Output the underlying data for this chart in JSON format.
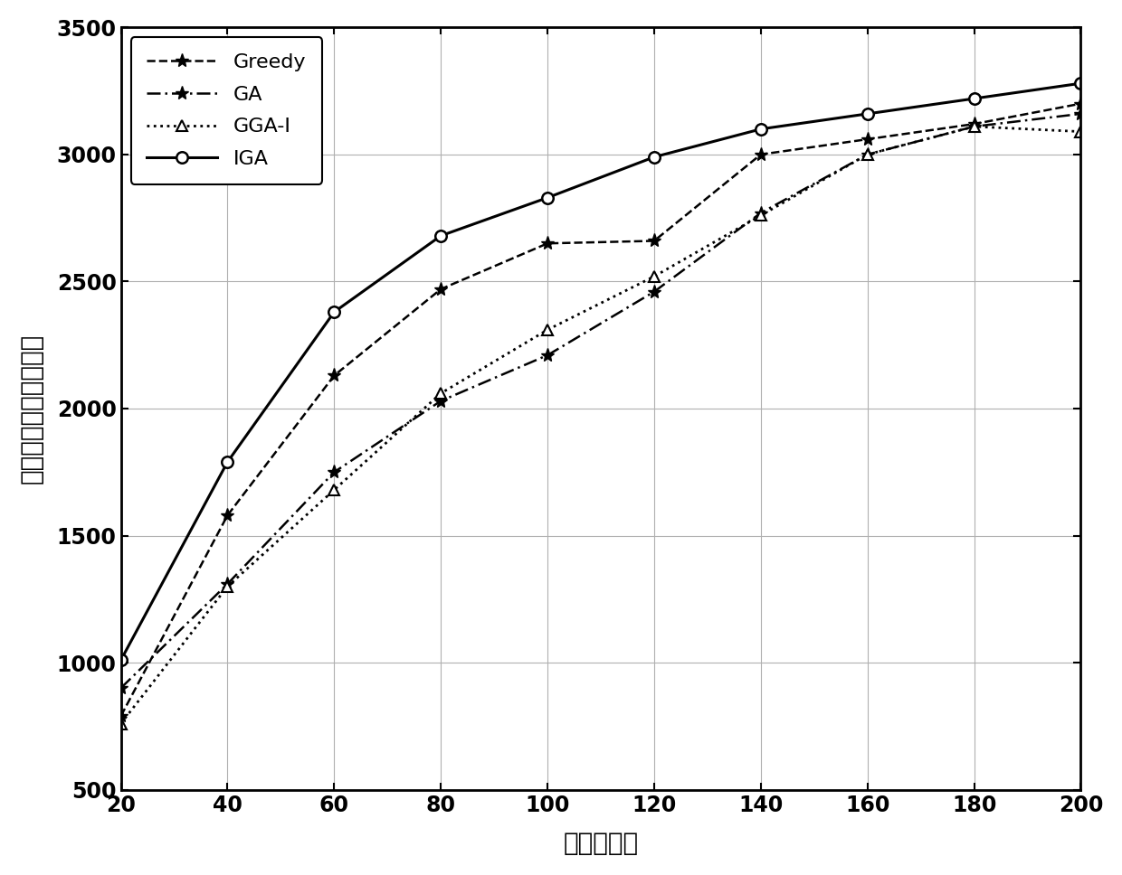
{
  "x": [
    20,
    40,
    60,
    80,
    100,
    120,
    140,
    160,
    180,
    200
  ],
  "greedy": [
    790,
    1580,
    2130,
    2470,
    2650,
    2660,
    3000,
    3060,
    3120,
    3200
  ],
  "ga": [
    900,
    1310,
    1750,
    2030,
    2210,
    2460,
    2770,
    3000,
    3110,
    3160
  ],
  "gga_i": [
    760,
    1300,
    1680,
    2060,
    2310,
    2520,
    2760,
    3000,
    3110,
    3090
  ],
  "iga": [
    1010,
    1790,
    2380,
    2680,
    2830,
    2990,
    3100,
    3160,
    3220,
    3280
  ],
  "xlabel": "参与者数量",
  "ylabel": "感知任务平台所获效益",
  "xlim": [
    20,
    200
  ],
  "ylim": [
    500,
    3500
  ],
  "xticks": [
    20,
    40,
    60,
    80,
    100,
    120,
    140,
    160,
    180,
    200
  ],
  "yticks": [
    500,
    1000,
    1500,
    2000,
    2500,
    3000,
    3500
  ],
  "line_color": "#000000",
  "background_color": "#ffffff",
  "legend_labels": [
    "Greedy",
    "GA",
    "GGA-I",
    "IGA"
  ],
  "fontsize_label": 20,
  "fontsize_tick": 17,
  "fontsize_legend": 16
}
